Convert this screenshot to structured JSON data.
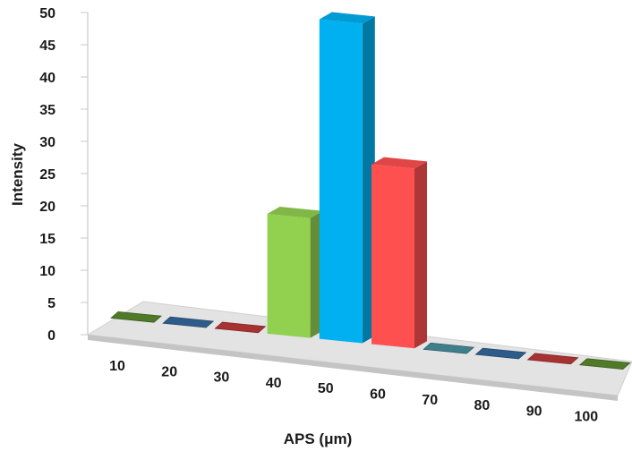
{
  "chart_data": {
    "type": "bar",
    "title": "",
    "xlabel": "APS (μm)",
    "ylabel": "Intensity",
    "categories": [
      "10",
      "20",
      "30",
      "40",
      "50",
      "60",
      "70",
      "80",
      "90",
      "100"
    ],
    "values": [
      0,
      0,
      0,
      18,
      48,
      27,
      0,
      0,
      0,
      0
    ],
    "bar_colors": [
      "#4f7a28",
      "#2e5c8a",
      "#a83232",
      "#92d050",
      "#00b0f0",
      "#ff5050",
      "#3f7f8c",
      "#2e5c8a",
      "#a83232",
      "#4f7a28"
    ],
    "ylim": [
      0,
      50
    ],
    "yticks": [
      "0",
      "5",
      "10",
      "15",
      "20",
      "25",
      "30",
      "35",
      "40",
      "45",
      "50"
    ],
    "grid": false,
    "legend": "none",
    "style": "3d-column"
  }
}
